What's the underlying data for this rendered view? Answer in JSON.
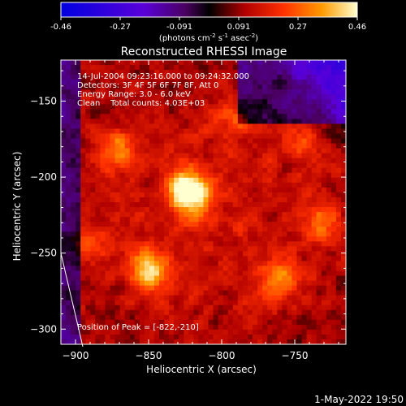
{
  "chart_data": {
    "type": "heatmap",
    "title": "Reconstructed RHESSI Image",
    "xlabel": "Heliocentric X (arcsec)",
    "ylabel": "Heliocentric Y (arcsec)",
    "xlim": [
      -910,
      -715
    ],
    "ylim": [
      -310,
      -123
    ],
    "xticks": [
      -900,
      -850,
      -800,
      -750
    ],
    "yticks": [
      -150,
      -200,
      -250,
      -300
    ],
    "colorbar": {
      "ticks": [
        "-0.46",
        "-0.27",
        "-0.091",
        "0.091",
        "0.27",
        "0.46"
      ],
      "min": -0.46,
      "max": 0.46,
      "unit_label": "(photons cm",
      "unit_exp1": "-2",
      "unit_mid": " s",
      "unit_exp2": "-1",
      "unit_mid2": " asec",
      "unit_exp3": "-2",
      "unit_end": ")"
    },
    "annotations": {
      "time_range": "14-Jul-2004 09:23:16.000 to 09:24:32.000",
      "detectors": "Detectors: 3F 4F 5F 6F 7F 8F, Att 0",
      "energy": "Energy Range: 3.0 - 6.0 keV",
      "clean": "Clean    Total counts: 4.03E+03",
      "peak": "Position of Peak = [-822,-210]"
    },
    "peak_position": {
      "x": -822,
      "y": -210,
      "value": 0.46
    },
    "bright_sources": [
      {
        "x": -822,
        "y": -210,
        "value": 0.46
      },
      {
        "x": -850,
        "y": -262,
        "value": 0.3
      },
      {
        "x": -872,
        "y": -182,
        "value": 0.2
      },
      {
        "x": -760,
        "y": -268,
        "value": 0.22
      },
      {
        "x": -730,
        "y": -230,
        "value": 0.18
      },
      {
        "x": -745,
        "y": -178,
        "value": 0.12
      },
      {
        "x": -890,
        "y": -242,
        "value": 0.14
      },
      {
        "x": -790,
        "y": -160,
        "value": 0.12
      }
    ],
    "limb_line": {
      "x": [
        -910,
        -895
      ],
      "y": [
        -250,
        -310
      ]
    },
    "timestamp": "1-May-2022 19:50"
  }
}
